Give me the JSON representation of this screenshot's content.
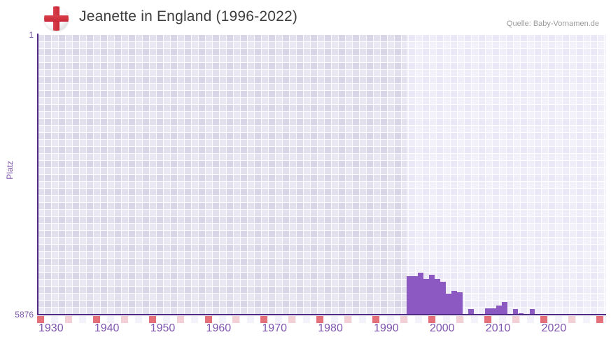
{
  "header": {
    "title": "Jeanette in England (1996-2022)",
    "source": "Quelle: Baby-Vornamen.de",
    "flag_icon": "england-flag-icon"
  },
  "axes": {
    "ylabel": "Platz",
    "y_top_label": "1",
    "y_bottom_label": "5876"
  },
  "chart_data": {
    "type": "bar",
    "title": "Jeanette in England (1996-2022)",
    "xlabel": "",
    "ylabel": "Platz",
    "ylim": [
      1,
      5876
    ],
    "y_inverted": true,
    "x_domain": [
      1929.5,
      2031.2
    ],
    "grid": true,
    "x_tick_labels": [
      "1930",
      "1940",
      "1950",
      "1960",
      "1970",
      "1980",
      "1990",
      "2000",
      "2010",
      "2020"
    ],
    "decade_marks": [
      1930,
      1940,
      1950,
      1960,
      1970,
      1980,
      1990,
      2000,
      2010,
      2020,
      2030
    ],
    "half_decade_marks": [
      1935,
      1945,
      1955,
      1965,
      1975,
      1985,
      1995,
      2005,
      2015,
      2025
    ],
    "highlight_from_year": 1995.5,
    "points": [
      {
        "year": 1996,
        "rank": 5070
      },
      {
        "year": 1997,
        "rank": 5070
      },
      {
        "year": 1998,
        "rank": 5000
      },
      {
        "year": 1999,
        "rank": 5140
      },
      {
        "year": 2000,
        "rank": 5040
      },
      {
        "year": 2001,
        "rank": 5130
      },
      {
        "year": 2002,
        "rank": 5185
      },
      {
        "year": 2003,
        "rank": 5435
      },
      {
        "year": 2004,
        "rank": 5390
      },
      {
        "year": 2005,
        "rank": 5420
      },
      {
        "year": 2007,
        "rank": 5760
      },
      {
        "year": 2010,
        "rank": 5745
      },
      {
        "year": 2011,
        "rank": 5745
      },
      {
        "year": 2012,
        "rank": 5685
      },
      {
        "year": 2013,
        "rank": 5625
      },
      {
        "year": 2015,
        "rank": 5770
      },
      {
        "year": 2016,
        "rank": 5855
      },
      {
        "year": 2018,
        "rank": 5760
      },
      {
        "year": 2022,
        "rank": 5876
      }
    ],
    "unranked_years": [
      2006,
      2008,
      2009,
      2014,
      2017,
      2019,
      2020,
      2021
    ],
    "colors": {
      "bar": "#8c59c3",
      "axis": "#4f2a85",
      "tick_label": "#7e55ae",
      "y_label": "#7b57a8",
      "decade_mark": "#e4717a",
      "half_decade_mark": "#f3cfd6",
      "era_before_data": "#d8d5e7",
      "era_data_period": "#eae8f6",
      "title_text": "#3d3d3d",
      "source_text": "#9b9b9b",
      "flag_cross_red": "#cd2b39"
    }
  }
}
